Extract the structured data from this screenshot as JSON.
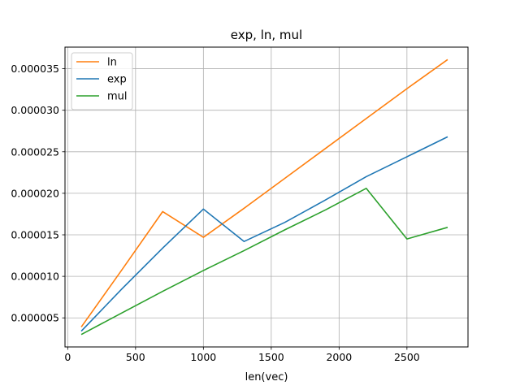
{
  "chart_data": {
    "type": "line",
    "title": "exp, ln, mul",
    "xlabel": "len(vec)",
    "ylabel": "",
    "xlim": [
      -20,
      2950
    ],
    "ylim": [
      1.5e-06,
      3.76e-05
    ],
    "xticks": [
      0,
      500,
      1000,
      1500,
      2000,
      2500
    ],
    "xtick_labels": [
      "0",
      "500",
      "1000",
      "1500",
      "2000",
      "2500"
    ],
    "yticks": [
      5e-06,
      1e-05,
      1.5e-05,
      2e-05,
      2.5e-05,
      3e-05,
      3.5e-05
    ],
    "ytick_labels": [
      "0.000005",
      "0.000010",
      "0.000015",
      "0.000020",
      "0.000025",
      "0.000030",
      "0.000035"
    ],
    "grid": true,
    "legend_position": "top-left",
    "x": [
      100,
      400,
      700,
      1000,
      1300,
      1600,
      1900,
      2200,
      2500,
      2800
    ],
    "series": [
      {
        "name": "ln",
        "color": "#ff7f0e",
        "values": [
          3.9e-06,
          1.08e-05,
          1.78e-05,
          1.47e-05,
          1.82e-05,
          2.18e-05,
          2.54e-05,
          2.9e-05,
          3.26e-05,
          3.61e-05
        ]
      },
      {
        "name": "exp",
        "color": "#1f77b4",
        "values": [
          3.4e-06,
          8.5e-06,
          1.34e-05,
          1.81e-05,
          1.42e-05,
          1.65e-05,
          1.92e-05,
          2.2e-05,
          2.44e-05,
          2.68e-05
        ]
      },
      {
        "name": "mul",
        "color": "#2ca02c",
        "values": [
          3e-06,
          5.6e-06,
          8.2e-06,
          1.07e-05,
          1.31e-05,
          1.56e-05,
          1.8e-05,
          2.06e-05,
          1.45e-05,
          1.59e-05
        ]
      }
    ]
  }
}
